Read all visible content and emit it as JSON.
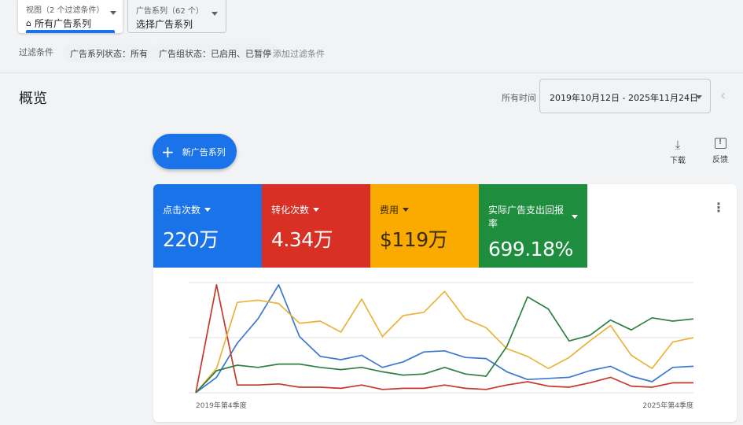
{
  "view_selector": {
    "label": "视图（2 个过滤条件）",
    "value": "所有广告系列",
    "icon": "home-icon"
  },
  "campaign_selector": {
    "label": "广告系列（62 个）",
    "value": "选择广告系列"
  },
  "filters": {
    "label": "过滤条件",
    "chips": [
      "广告系列状态：所有",
      "广告组状态：已启用、已暂停"
    ],
    "add": "添加过滤条件"
  },
  "overview": {
    "title": "概览",
    "range_label": "所有时间",
    "date_range": "2019年10月12日 - 2025年11月24日"
  },
  "actions": {
    "new_campaign": "新广告系列",
    "download": "下载",
    "feedback": "反馈"
  },
  "metrics": [
    {
      "label": "点击次数",
      "value": "220万",
      "color": "#1a73e8"
    },
    {
      "label": "转化次数",
      "value": "4.34万",
      "color": "#d93025"
    },
    {
      "label": "费用",
      "value": "$119万",
      "color": "#f9ab00"
    },
    {
      "label": "实际广告支出回报率",
      "value": "699.18%",
      "color": "#1e8e3e"
    }
  ],
  "chart_data": {
    "type": "line",
    "x_start_label": "2019年第4季度",
    "x_end_label": "2025年第4季度",
    "ylim": [
      0,
      100
    ],
    "grid": true,
    "series": [
      {
        "metric": "点击次数",
        "color": "#3b78d0",
        "values": [
          0,
          14,
          45,
          67,
          98,
          51,
          33,
          30,
          34,
          23,
          28,
          37,
          38,
          32,
          31,
          19,
          12,
          13,
          14,
          20,
          24,
          15,
          10,
          23,
          24
        ]
      },
      {
        "metric": "转化次数",
        "color": "#c5392b",
        "values": [
          0,
          98,
          7,
          7,
          8,
          5,
          5,
          4,
          7,
          3,
          4,
          4,
          7,
          4,
          3,
          7,
          10,
          6,
          5,
          9,
          14,
          6,
          5,
          9,
          9
        ]
      },
      {
        "metric": "费用",
        "color": "#eab33a",
        "values": [
          0,
          22,
          82,
          84,
          81,
          63,
          65,
          55,
          85,
          51,
          70,
          73,
          92,
          67,
          59,
          40,
          33,
          22,
          32,
          47,
          61,
          34,
          22,
          46,
          50
        ]
      },
      {
        "metric": "实际广告支出回报率",
        "color": "#2e8040",
        "values": [
          0,
          20,
          25,
          23,
          26,
          26,
          23,
          21,
          23,
          19,
          16,
          17,
          23,
          17,
          15,
          42,
          87,
          76,
          47,
          52,
          66,
          57,
          68,
          65,
          67
        ]
      }
    ]
  }
}
